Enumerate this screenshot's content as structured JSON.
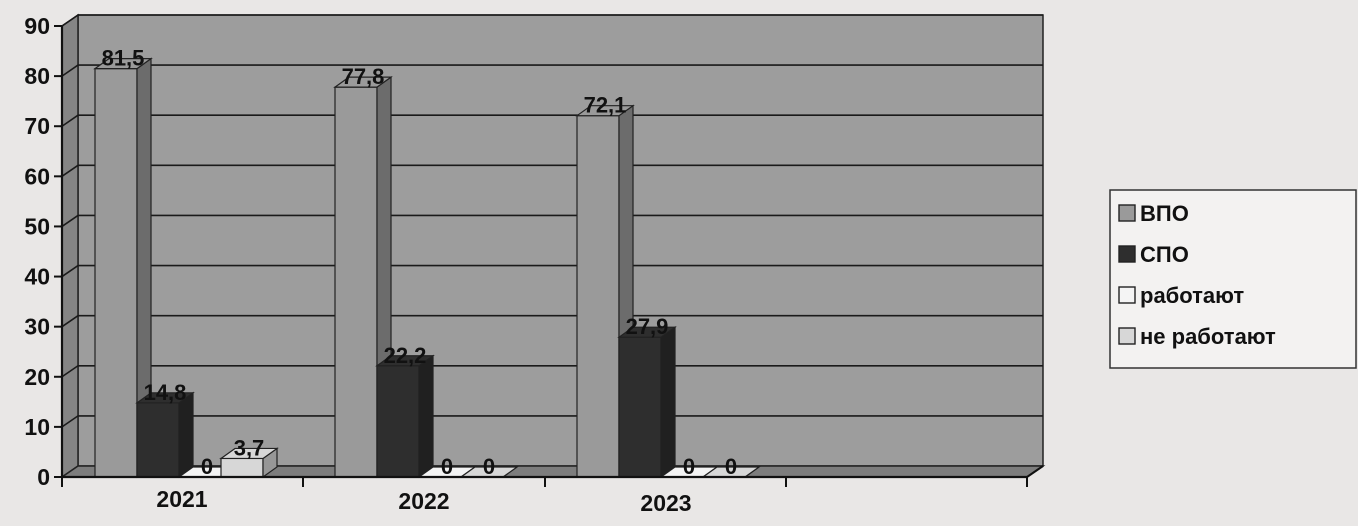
{
  "chart_data": {
    "type": "bar",
    "categories": [
      "2021",
      "2022",
      "2023"
    ],
    "series": [
      {
        "name": "ВПО",
        "values": [
          81.5,
          77.8,
          72.1
        ],
        "color": "#9a9a9a"
      },
      {
        "name": "СПО",
        "values": [
          14.8,
          22.2,
          27.9
        ],
        "color": "#2e2e2e"
      },
      {
        "name": "работают",
        "values": [
          0,
          0,
          0
        ],
        "color": "#f4f4f4"
      },
      {
        "name": "не работают",
        "values": [
          3.7,
          0,
          0
        ],
        "color": "#d7d7d7"
      }
    ],
    "data_labels": [
      [
        "81,5",
        "14,8",
        "0",
        "3,7"
      ],
      [
        "77,8",
        "22,2",
        "0",
        "0"
      ],
      [
        "72,1",
        "27,9",
        "0",
        "0"
      ]
    ],
    "yticks": [
      "0",
      "10",
      "20",
      "30",
      "40",
      "50",
      "60",
      "70",
      "80",
      "90"
    ],
    "ylim": [
      0,
      90
    ],
    "grid": true,
    "legend_position": "right",
    "plot_color": "#9d9d9d",
    "floor_color": "#7d7d7d"
  }
}
